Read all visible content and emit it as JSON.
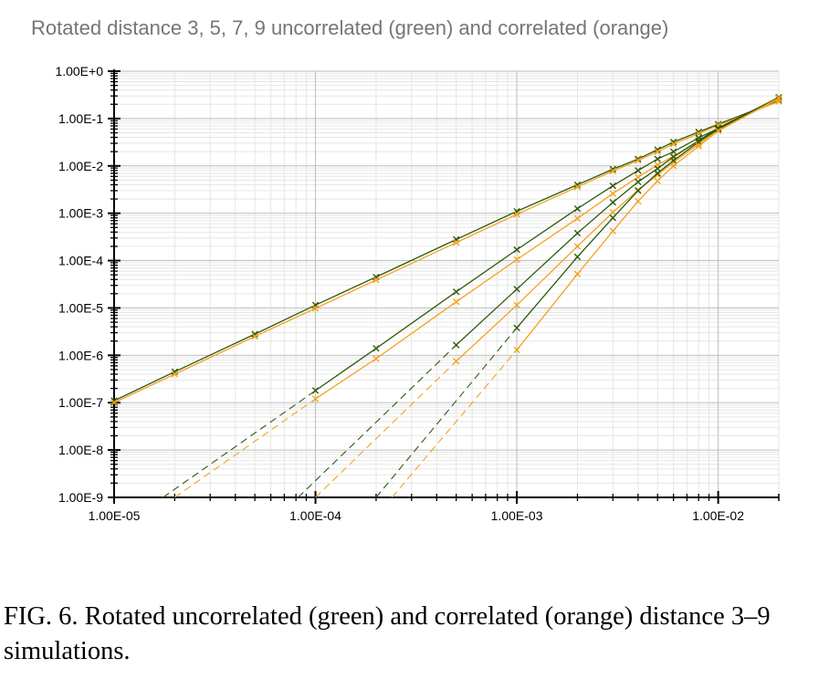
{
  "colors": {
    "green": "#2d5a0e",
    "orange": "#f5a21d",
    "grid_major": "#bdbdbd",
    "grid_minor": "#e6e6e6"
  },
  "caption": {
    "lead": "FIG. 6.",
    "text": "Rotated uncorrelated (green) and correlated (orange) distance 3–9 simulations."
  },
  "chart_data": {
    "type": "line",
    "title": "Rotated distance 3, 5, 7, 9 uncorrelated (green) and correlated (orange)",
    "xscale": "log",
    "yscale": "log",
    "xlim": [
      1e-05,
      0.02
    ],
    "ylim": [
      1e-09,
      1
    ],
    "grid": true,
    "xticks": [
      "1.00E-05",
      "1.00E-04",
      "1.00E-03",
      "1.00E-02"
    ],
    "yticks": [
      "1.00E+0",
      "1.00E-1",
      "1.00E-2",
      "1.00E-3",
      "1.00E-4",
      "1.00E-5",
      "1.00E-6",
      "1.00E-7",
      "1.00E-8",
      "1.00E-9"
    ],
    "series": [
      {
        "color": "green",
        "marker": "x",
        "x": [
          1e-05,
          2e-05,
          5e-05,
          0.0001,
          0.0002,
          0.0005,
          0.001,
          0.002,
          0.003,
          0.004,
          0.005,
          0.006,
          0.008,
          0.01,
          0.02
        ],
        "y": [
          1.1e-07,
          4.5e-07,
          2.8e-06,
          1.15e-05,
          4.5e-05,
          0.00028,
          0.0011,
          0.004,
          0.0085,
          0.014,
          0.022,
          0.032,
          0.052,
          0.076,
          0.24
        ]
      },
      {
        "color": "orange",
        "marker": "x",
        "x": [
          1e-05,
          2e-05,
          5e-05,
          0.0001,
          0.0002,
          0.0005,
          0.001,
          0.002,
          0.003,
          0.004,
          0.005,
          0.006,
          0.008,
          0.01,
          0.02
        ],
        "y": [
          1e-07,
          4e-07,
          2.5e-06,
          9.8e-06,
          3.9e-05,
          0.00024,
          0.00095,
          0.0036,
          0.0078,
          0.013,
          0.02,
          0.029,
          0.048,
          0.072,
          0.23
        ]
      },
      {
        "color": "green",
        "marker": "x",
        "x": [
          0.0001,
          0.0002,
          0.0005,
          0.001,
          0.002,
          0.003,
          0.004,
          0.005,
          0.006,
          0.008,
          0.01,
          0.02
        ],
        "y": [
          1.8e-07,
          1.4e-06,
          2.2e-05,
          0.00017,
          0.00125,
          0.0038,
          0.008,
          0.014,
          0.02,
          0.039,
          0.062,
          0.27
        ]
      },
      {
        "color": "orange",
        "marker": "x",
        "x": [
          0.0001,
          0.0002,
          0.0005,
          0.001,
          0.002,
          0.003,
          0.004,
          0.005,
          0.006,
          0.008,
          0.01,
          0.02
        ],
        "y": [
          1.2e-07,
          8.5e-07,
          1.35e-05,
          0.000105,
          0.00078,
          0.0026,
          0.0058,
          0.0105,
          0.016,
          0.034,
          0.057,
          0.26
        ]
      },
      {
        "color": "green",
        "marker": "x",
        "x": [
          0.0005,
          0.001,
          0.002,
          0.003,
          0.004,
          0.005,
          0.006,
          0.008,
          0.01,
          0.02
        ],
        "y": [
          1.65e-06,
          2.5e-05,
          0.00038,
          0.0017,
          0.0046,
          0.0088,
          0.0155,
          0.034,
          0.063,
          0.28
        ]
      },
      {
        "color": "orange",
        "marker": "x",
        "x": [
          0.0005,
          0.001,
          0.002,
          0.003,
          0.004,
          0.005,
          0.006,
          0.008,
          0.01,
          0.02
        ],
        "y": [
          7.5e-07,
          1.15e-05,
          0.0002,
          0.00105,
          0.0031,
          0.0065,
          0.012,
          0.029,
          0.057,
          0.27
        ]
      },
      {
        "color": "green",
        "marker": "x",
        "x": [
          0.001,
          0.002,
          0.003,
          0.004,
          0.005,
          0.006,
          0.008,
          0.01,
          0.02
        ],
        "y": [
          3.8e-06,
          0.00012,
          0.0008,
          0.003,
          0.007,
          0.013,
          0.032,
          0.06,
          0.28
        ]
      },
      {
        "color": "orange",
        "marker": "x",
        "x": [
          0.001,
          0.002,
          0.003,
          0.004,
          0.005,
          0.006,
          0.008,
          0.01,
          0.02
        ],
        "y": [
          1.3e-06,
          5.2e-05,
          0.00042,
          0.0018,
          0.0048,
          0.01,
          0.026,
          0.055,
          0.27
        ]
      },
      {
        "color": "green",
        "style": "dashed",
        "x": [
          1.75e-05,
          0.0001
        ],
        "y": [
          1e-09,
          1.8e-07
        ]
      },
      {
        "color": "orange",
        "style": "dashed",
        "x": [
          2e-05,
          0.0001
        ],
        "y": [
          1e-09,
          1.2e-07
        ]
      },
      {
        "color": "green",
        "style": "dashed",
        "x": [
          8.2e-05,
          0.0005
        ],
        "y": [
          1e-09,
          1.65e-06
        ]
      },
      {
        "color": "orange",
        "style": "dashed",
        "x": [
          0.0001,
          0.0005
        ],
        "y": [
          1e-09,
          7.5e-07
        ]
      },
      {
        "color": "green",
        "style": "dashed",
        "x": [
          0.0002,
          0.001
        ],
        "y": [
          1e-09,
          3.8e-06
        ]
      },
      {
        "color": "orange",
        "style": "dashed",
        "x": [
          0.00024,
          0.001
        ],
        "y": [
          1e-09,
          1.3e-06
        ]
      }
    ]
  }
}
